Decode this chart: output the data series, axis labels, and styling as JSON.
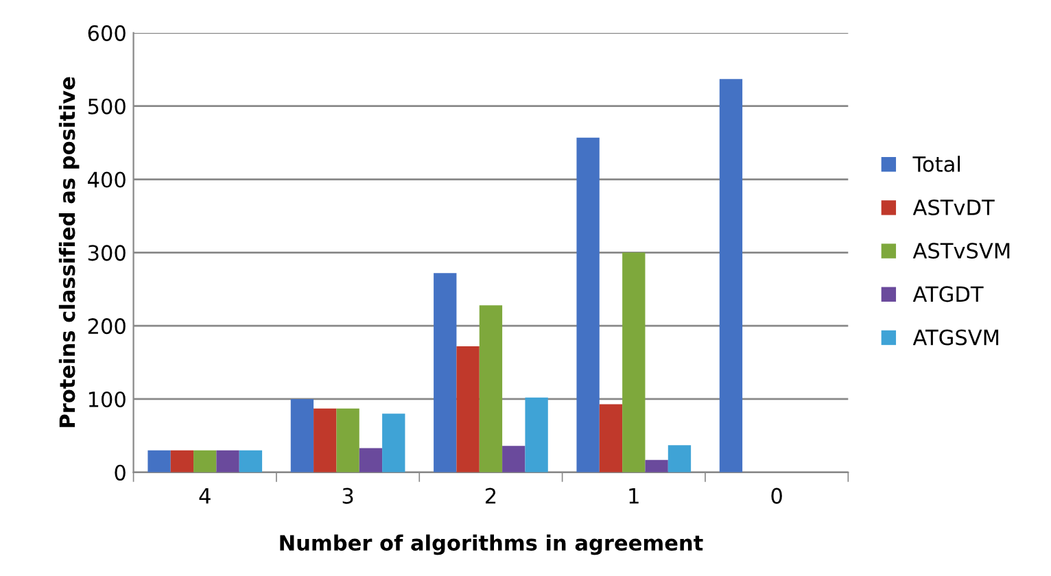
{
  "chart_data": {
    "type": "bar",
    "xlabel": "Number of algorithms in agreement",
    "ylabel": "Proteins classified as positive",
    "categories": [
      "4",
      "3",
      "2",
      "1",
      "0"
    ],
    "series": [
      {
        "name": "Total",
        "color": "#4472c4",
        "values": [
          30,
          100,
          272,
          457,
          537
        ]
      },
      {
        "name": "ASTvDT",
        "color": "#c0392b",
        "values": [
          30,
          87,
          172,
          93,
          0
        ]
      },
      {
        "name": "ASTvSVM",
        "color": "#7ea83c",
        "values": [
          30,
          87,
          228,
          300,
          0
        ]
      },
      {
        "name": "ATGDT",
        "color": "#6a4a9c",
        "values": [
          30,
          33,
          36,
          17,
          0
        ]
      },
      {
        "name": "ATGSVM",
        "color": "#3fa3d6",
        "values": [
          30,
          80,
          102,
          37,
          0
        ]
      }
    ],
    "ylim": [
      0,
      600
    ],
    "yticks": [
      0,
      100,
      200,
      300,
      400,
      500,
      600
    ],
    "grid": "y",
    "legend": "right"
  }
}
